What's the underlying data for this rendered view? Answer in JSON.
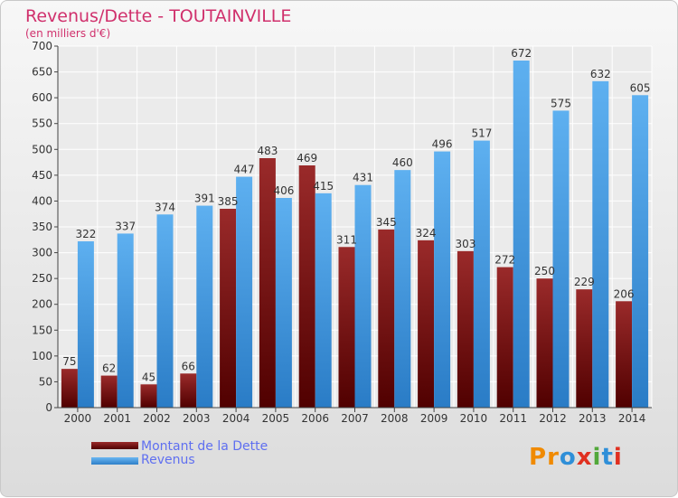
{
  "header": {
    "title": "Revenus/Dette - TOUTAINVILLE",
    "subtitle": "(en milliers d'€)"
  },
  "legend": {
    "debt_label": "Montant de la Dette",
    "revenue_label": "Revenus"
  },
  "logo": {
    "text": "Proxiti",
    "letters": [
      "P",
      "r",
      "o",
      "x",
      "i",
      "t",
      "i"
    ],
    "colors": [
      "#f08a00",
      "#f08a00",
      "#2f8fd8",
      "#e03020",
      "#52a83a",
      "#2f8fd8",
      "#e03020"
    ]
  },
  "chart_data": {
    "type": "bar",
    "title": "Revenus/Dette - TOUTAINVILLE",
    "subtitle": "(en milliers d'€)",
    "categories": [
      "2000",
      "2001",
      "2002",
      "2003",
      "2004",
      "2005",
      "2006",
      "2007",
      "2008",
      "2009",
      "2010",
      "2011",
      "2012",
      "2013",
      "2014"
    ],
    "series": [
      {
        "name": "Montant de la Dette",
        "color": "#6e1010",
        "values": [
          75,
          62,
          45,
          66,
          385,
          483,
          469,
          311,
          345,
          324,
          303,
          272,
          250,
          229,
          206
        ]
      },
      {
        "name": "Revenus",
        "color": "#3d97e0",
        "values": [
          322,
          337,
          374,
          391,
          447,
          406,
          415,
          431,
          460,
          496,
          517,
          672,
          575,
          632,
          605
        ]
      }
    ],
    "ylim": [
      0,
      700
    ],
    "yticks": [
      0,
      50,
      100,
      150,
      200,
      250,
      300,
      350,
      400,
      450,
      500,
      550,
      600,
      650,
      700
    ],
    "grid": true,
    "legend_position": "bottom-left"
  }
}
